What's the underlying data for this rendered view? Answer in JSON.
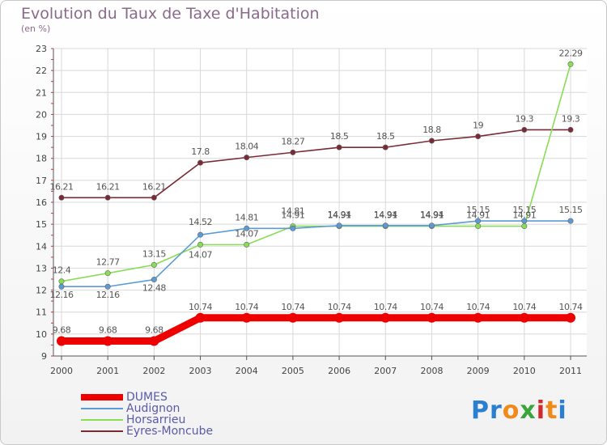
{
  "header": {
    "title": "Evolution du Taux de Taxe d'Habitation",
    "subtitle": "(en %)"
  },
  "brand": {
    "letters": [
      "P",
      "r",
      "o",
      "x",
      "i",
      "t",
      "i"
    ],
    "colors": [
      "#2a7fd0",
      "#2a7fd0",
      "#f08a1a",
      "#3aa53a",
      "#d02a2a",
      "#f08a1a",
      "#2a7fd0"
    ]
  },
  "chart_data": {
    "type": "line",
    "title": "Evolution du Taux de Taxe d'Habitation",
    "ylabel": "(en %)",
    "xlabel": "",
    "x": [
      "2000",
      "2001",
      "2002",
      "2003",
      "2004",
      "2005",
      "2006",
      "2007",
      "2008",
      "2009",
      "2010",
      "2011"
    ],
    "ylim": [
      9,
      23
    ],
    "yticks": [
      "9",
      "10",
      "11",
      "12",
      "13",
      "14",
      "15",
      "16",
      "17",
      "18",
      "19",
      "20",
      "21",
      "22",
      "23"
    ],
    "grid": true,
    "legend": "bottom-left",
    "series": [
      {
        "name": "DUMES",
        "color": "#ee0000",
        "values": [
          9.68,
          9.68,
          9.68,
          10.74,
          10.74,
          10.74,
          10.74,
          10.74,
          10.74,
          10.74,
          10.74,
          10.74
        ],
        "labels": [
          "9.68",
          "9.68",
          "9.68",
          "10.74",
          "10.74",
          "10.74",
          "10.74",
          "10.74",
          "10.74",
          "10.74",
          "10.74",
          "10.74"
        ]
      },
      {
        "name": "Audignon",
        "color": "#5b9bd5",
        "values": [
          12.16,
          12.16,
          12.48,
          14.52,
          14.81,
          14.81,
          14.94,
          14.94,
          14.94,
          15.15,
          15.15,
          15.15
        ],
        "labels": [
          "12.16",
          "12.16",
          "12.48",
          "14.52",
          "14.81",
          "14.81",
          "14.94",
          "14.94",
          "14.94",
          "15.15",
          "15.15",
          "15.15"
        ]
      },
      {
        "name": "Horsarrieu",
        "color": "#88dd55",
        "values": [
          12.4,
          12.77,
          13.15,
          14.07,
          14.07,
          14.91,
          14.91,
          14.91,
          14.91,
          14.91,
          14.91,
          22.29
        ],
        "labels": [
          "12.4",
          "12.77",
          "13.15",
          "14.07",
          "14.07",
          "14.91",
          "14.91",
          "14.91",
          "14.91",
          "14.91",
          "14.91",
          "22.29"
        ]
      },
      {
        "name": "Eyres-Moncube",
        "color": "#7a2a35",
        "values": [
          16.21,
          16.21,
          16.21,
          17.8,
          18.04,
          18.27,
          18.5,
          18.5,
          18.8,
          19.0,
          19.3,
          19.3
        ],
        "labels": [
          "16.21",
          "16.21",
          "16.21",
          "17.8",
          "18.04",
          "18.27",
          "18.5",
          "18.5",
          "18.8",
          "19",
          "19.3",
          "19.3"
        ]
      }
    ]
  }
}
